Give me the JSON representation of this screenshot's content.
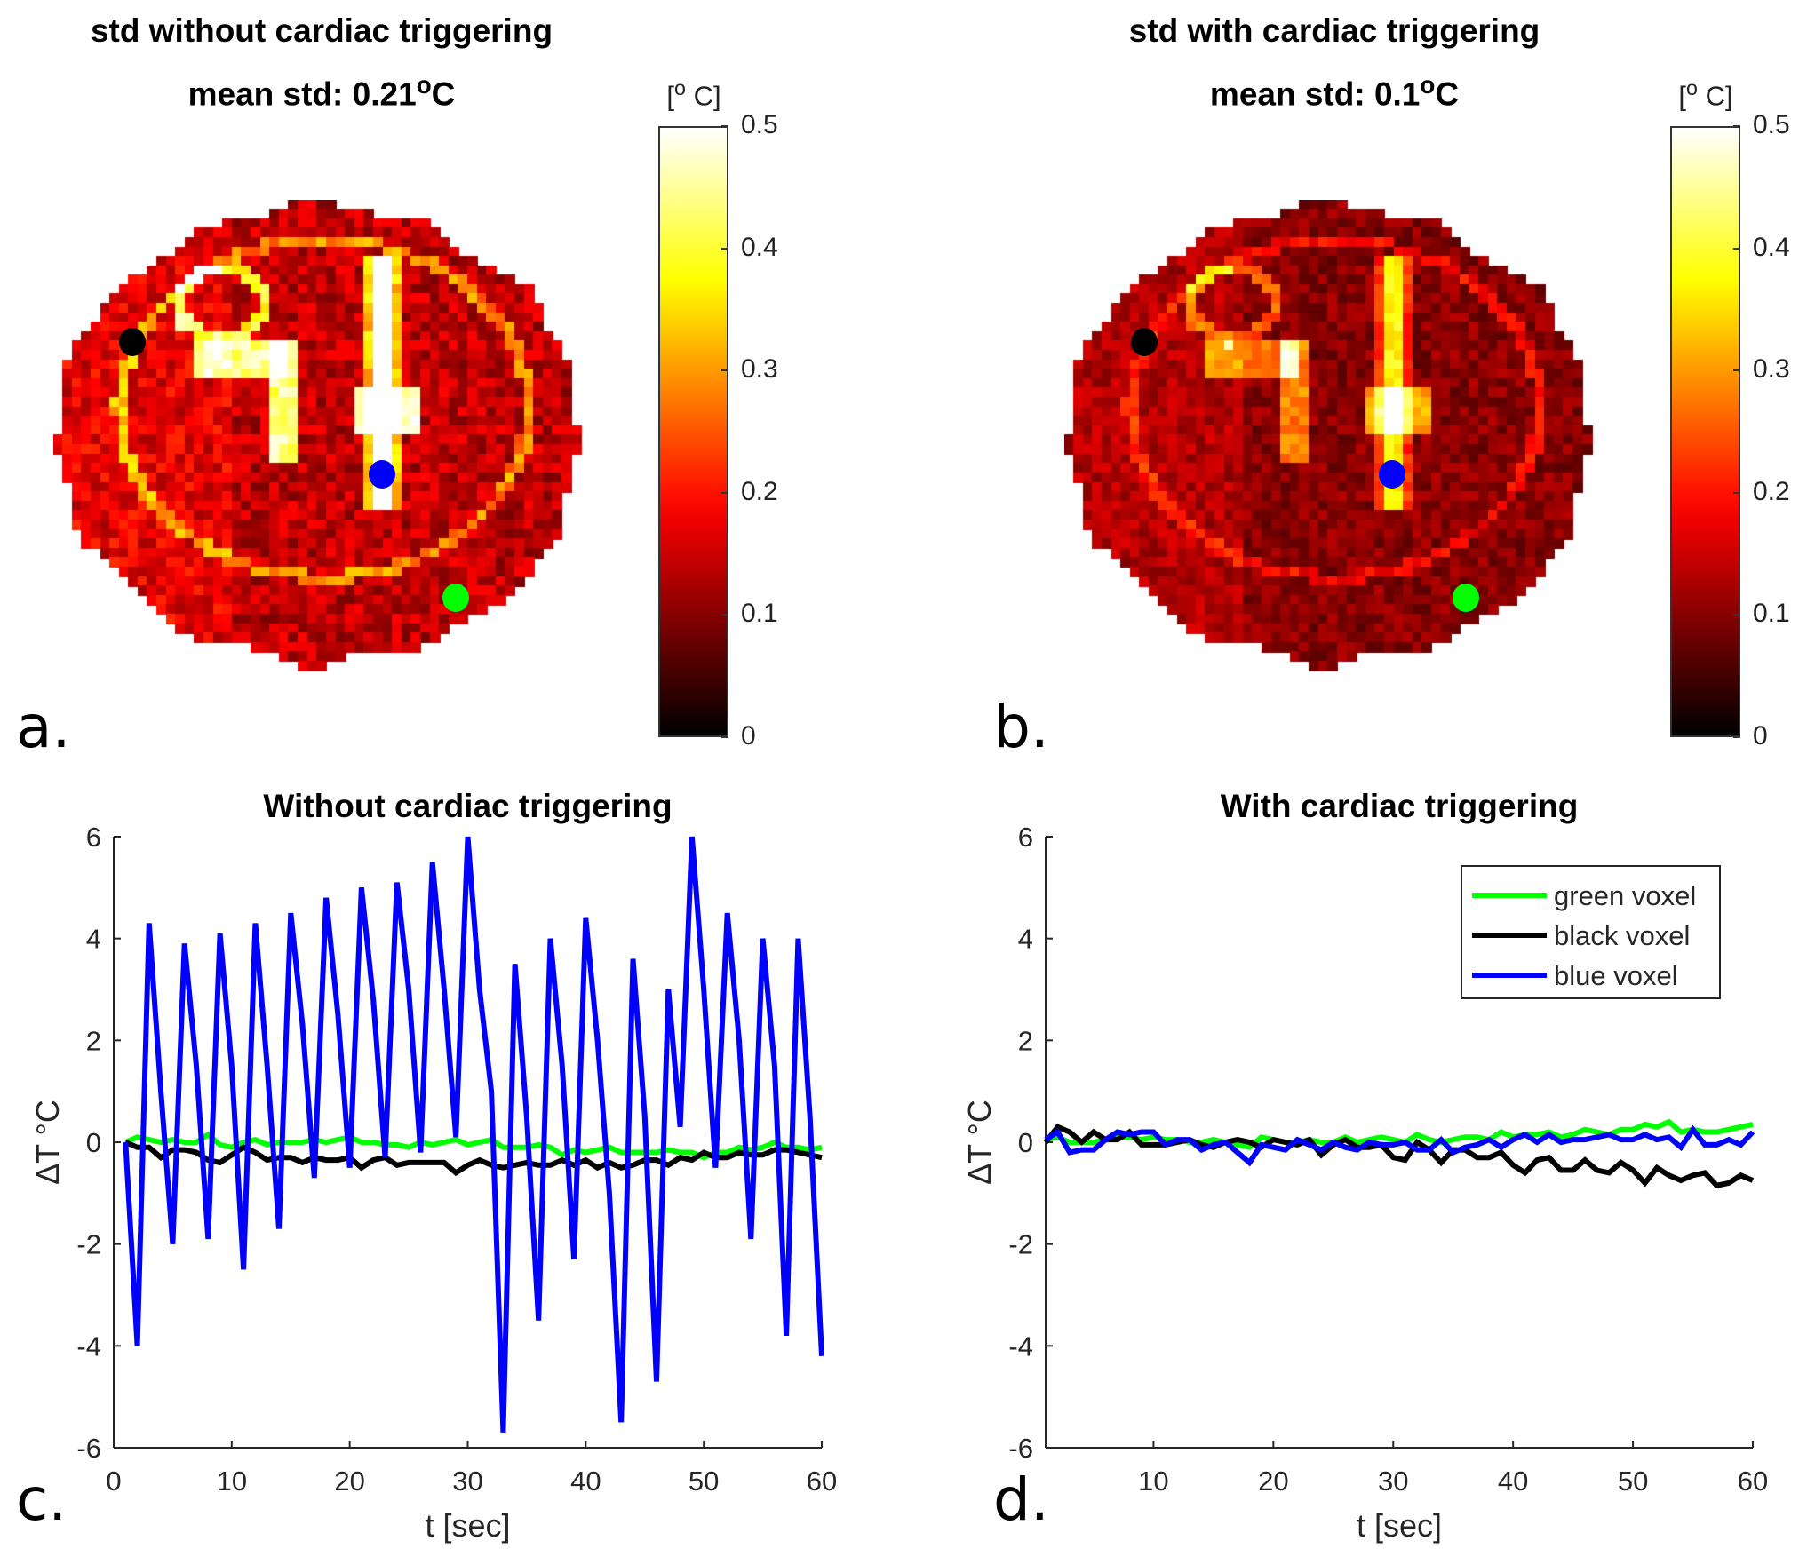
{
  "panels": {
    "a": {
      "label": "a.",
      "title": "std without cardiac triggering",
      "subtitle_prefix": "mean std: 0.21",
      "subtitle_deg": "o",
      "subtitle_unit": "C"
    },
    "b": {
      "label": "b.",
      "title": "std with cardiac triggering",
      "subtitle_prefix": "mean std: 0.1",
      "subtitle_deg": "o",
      "subtitle_unit": "C"
    },
    "c": {
      "label": "c."
    },
    "d": {
      "label": "d."
    }
  },
  "colorbar": {
    "colormap": "hot",
    "unit_open": "[",
    "unit_deg": "o",
    "unit_rest": " C]",
    "range": [
      0,
      0.5
    ],
    "ticks": [
      "0.5",
      "0.4",
      "0.3",
      "0.2",
      "0.1",
      "0"
    ]
  },
  "markers": {
    "black": "#000000",
    "blue": "#0000ff",
    "green": "#00ff00"
  },
  "chart_data": [
    {
      "type": "line",
      "title": "Without cardiac triggering",
      "xlabel": "t [sec]",
      "ylabel": "ΔT °C",
      "xlim": [
        0,
        60
      ],
      "ylim": [
        -6,
        6
      ],
      "xticks": [
        0,
        10,
        20,
        30,
        40,
        50,
        60
      ],
      "yticks": [
        -6,
        -4,
        -2,
        0,
        2,
        4,
        6
      ],
      "grid": false,
      "x": [
        1,
        2,
        3,
        4,
        5,
        6,
        7,
        8,
        9,
        10,
        11,
        12,
        13,
        14,
        15,
        16,
        17,
        18,
        19,
        20,
        21,
        22,
        23,
        24,
        25,
        26,
        27,
        28,
        29,
        30,
        31,
        32,
        33,
        34,
        35,
        36,
        37,
        38,
        39,
        40,
        41,
        42,
        43,
        44,
        45,
        46,
        47,
        48,
        49,
        50,
        51,
        52,
        53,
        54,
        55,
        56,
        57,
        58,
        59,
        60
      ],
      "series": [
        {
          "name": "green voxel",
          "color": "#00ff00",
          "values": [
            0,
            0.1,
            0.05,
            0,
            0.05,
            0,
            0,
            0.15,
            -0.05,
            -0.1,
            0,
            0.05,
            -0.05,
            0,
            0,
            0,
            0.05,
            0,
            0.05,
            0.1,
            0,
            0,
            -0.05,
            -0.05,
            -0.1,
            0,
            -0.05,
            0,
            0.05,
            -0.05,
            0,
            0.05,
            -0.1,
            -0.1,
            -0.1,
            -0.05,
            -0.1,
            -0.25,
            -0.15,
            -0.2,
            -0.15,
            -0.1,
            -0.2,
            -0.2,
            -0.2,
            -0.2,
            -0.15,
            -0.2,
            -0.2,
            -0.3,
            -0.2,
            -0.2,
            -0.1,
            -0.15,
            -0.1,
            0,
            -0.1,
            -0.1,
            -0.15,
            -0.1
          ]
        },
        {
          "name": "black voxel",
          "color": "#000000",
          "values": [
            0,
            -0.1,
            -0.1,
            -0.3,
            -0.15,
            -0.15,
            -0.2,
            -0.35,
            -0.4,
            -0.25,
            -0.1,
            -0.2,
            -0.35,
            -0.3,
            -0.3,
            -0.4,
            -0.3,
            -0.35,
            -0.35,
            -0.3,
            -0.5,
            -0.35,
            -0.3,
            -0.45,
            -0.4,
            -0.4,
            -0.4,
            -0.4,
            -0.6,
            -0.45,
            -0.35,
            -0.45,
            -0.5,
            -0.45,
            -0.4,
            -0.45,
            -0.45,
            -0.35,
            -0.45,
            -0.35,
            -0.5,
            -0.4,
            -0.5,
            -0.45,
            -0.35,
            -0.35,
            -0.45,
            -0.3,
            -0.35,
            -0.2,
            -0.3,
            -0.3,
            -0.2,
            -0.25,
            -0.25,
            -0.15,
            -0.15,
            -0.2,
            -0.25,
            -0.3
          ]
        },
        {
          "name": "blue voxel",
          "color": "#0000ff",
          "values": [
            0,
            -4,
            4.3,
            1,
            -2,
            3.9,
            1.5,
            -1.9,
            4.1,
            1.5,
            -2.5,
            4.3,
            1.5,
            -1.7,
            4.5,
            2.3,
            -0.7,
            4.8,
            2.5,
            -0.5,
            5,
            2.8,
            -0.3,
            5.1,
            3,
            -0.2,
            5.5,
            3,
            0.1,
            6,
            3,
            1,
            -5.7,
            3.5,
            0.5,
            -3.5,
            4,
            1.5,
            -2.3,
            4.4,
            2,
            -1,
            -5.5,
            3.6,
            0.5,
            -4.7,
            3,
            0.3,
            6,
            3,
            -0.5,
            4.5,
            2,
            -1.9,
            4,
            1.5,
            -3.8,
            4,
            0.5,
            -4.2
          ]
        }
      ]
    },
    {
      "type": "line",
      "title": "With cardiac triggering",
      "xlabel": "t [sec]",
      "ylabel": "ΔT °C",
      "xlim": [
        1,
        60
      ],
      "ylim": [
        -6,
        6
      ],
      "xticks": [
        10,
        20,
        30,
        40,
        50,
        60
      ],
      "yticks": [
        -6,
        -4,
        -2,
        0,
        2,
        4,
        6
      ],
      "grid": false,
      "legend": "top-right",
      "x": [
        1,
        2,
        3,
        4,
        5,
        6,
        7,
        8,
        9,
        10,
        11,
        12,
        13,
        14,
        15,
        16,
        17,
        18,
        19,
        20,
        21,
        22,
        23,
        24,
        25,
        26,
        27,
        28,
        29,
        30,
        31,
        32,
        33,
        34,
        35,
        36,
        37,
        38,
        39,
        40,
        41,
        42,
        43,
        44,
        45,
        46,
        47,
        48,
        49,
        50,
        51,
        52,
        53,
        54,
        55,
        56,
        57,
        58,
        59,
        60
      ],
      "series": [
        {
          "name": "green voxel",
          "color": "#00ff00",
          "values": [
            0.05,
            0.1,
            0,
            0,
            0,
            0.05,
            0.1,
            0.1,
            0.05,
            0.1,
            0.05,
            0.05,
            0,
            0,
            0.05,
            0,
            -0.05,
            -0.1,
            0.1,
            0.05,
            0,
            0,
            0.05,
            0,
            0,
            0.1,
            0,
            0.05,
            0.1,
            0.05,
            0,
            0.15,
            0.05,
            0,
            0.05,
            0.1,
            0.1,
            0.05,
            0.2,
            0.1,
            0.15,
            0.15,
            0.2,
            0.1,
            0.15,
            0.25,
            0.2,
            0.15,
            0.25,
            0.25,
            0.35,
            0.3,
            0.4,
            0.2,
            0.25,
            0.2,
            0.2,
            0.25,
            0.3,
            0.35
          ]
        },
        {
          "name": "black voxel",
          "color": "#000000",
          "values": [
            0,
            0.3,
            0.2,
            0,
            0.2,
            0.05,
            0.05,
            0.2,
            -0.05,
            -0.05,
            -0.05,
            0,
            0.05,
            -0.05,
            -0.1,
            0,
            0.05,
            0,
            -0.1,
            0.05,
            0,
            -0.05,
            0.05,
            -0.25,
            -0.05,
            0.05,
            -0.1,
            -0.1,
            -0.05,
            -0.3,
            -0.35,
            0,
            -0.15,
            -0.4,
            -0.15,
            -0.15,
            -0.3,
            -0.3,
            -0.2,
            -0.45,
            -0.6,
            -0.35,
            -0.3,
            -0.55,
            -0.55,
            -0.35,
            -0.55,
            -0.6,
            -0.4,
            -0.55,
            -0.8,
            -0.5,
            -0.65,
            -0.75,
            -0.65,
            -0.6,
            -0.85,
            -0.8,
            -0.65,
            -0.75
          ]
        },
        {
          "name": "blue voxel",
          "color": "#0000ff",
          "values": [
            0.05,
            0.2,
            -0.2,
            -0.15,
            -0.15,
            0.05,
            0.2,
            0.15,
            0.2,
            0.2,
            -0.05,
            0.05,
            0.05,
            -0.15,
            -0.05,
            0,
            -0.2,
            -0.4,
            -0.05,
            -0.1,
            -0.15,
            0.05,
            -0.05,
            -0.15,
            0,
            -0.1,
            -0.15,
            0,
            -0.05,
            -0.05,
            0,
            -0.15,
            -0.15,
            0.05,
            -0.2,
            -0.1,
            -0.05,
            0.05,
            -0.1,
            0.05,
            0.15,
            0,
            0.15,
            0,
            0.05,
            0.05,
            0.1,
            0.15,
            0.05,
            0.05,
            0.15,
            0.05,
            0.1,
            -0.1,
            0.25,
            -0.05,
            -0.05,
            0.05,
            -0.05,
            0.2
          ]
        }
      ]
    }
  ]
}
